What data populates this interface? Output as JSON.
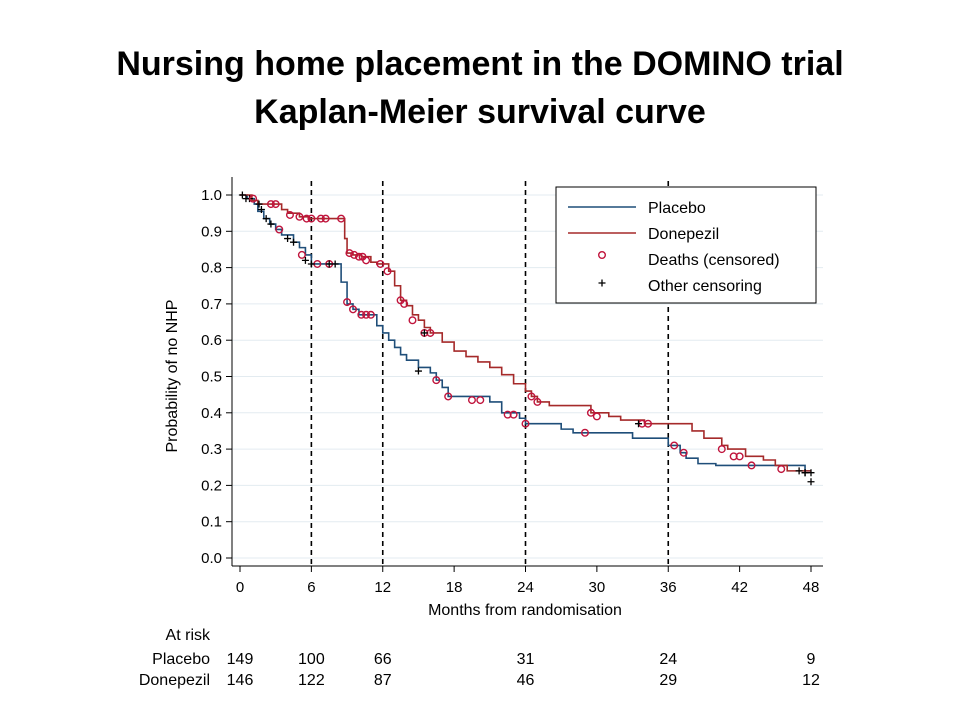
{
  "slide": {
    "title_line1": "Nursing home placement in the DOMINO trial",
    "title_line2": "Kaplan-Meier survival curve"
  },
  "chart_data": {
    "type": "line",
    "subtype": "step (Kaplan-Meier)",
    "xlabel": "Months from randomisation",
    "ylabel": "Probability of no NHP",
    "xlim": [
      0,
      48
    ],
    "ylim": [
      0,
      1
    ],
    "x_ticks": [
      0,
      6,
      12,
      18,
      24,
      30,
      36,
      42,
      48
    ],
    "y_ticks": [
      0.0,
      0.1,
      0.2,
      0.3,
      0.4,
      0.5,
      0.6,
      0.7,
      0.8,
      0.9,
      1.0
    ],
    "y_tick_labels": [
      "0.0",
      "0.1",
      "0.2",
      "0.3",
      "0.4",
      "0.5",
      "0.6",
      "0.7",
      "0.8",
      "0.9",
      "1.0"
    ],
    "grid": "horizontal",
    "reference_lines_x": [
      6,
      12,
      24,
      36
    ],
    "legend_position": "top-right",
    "legend": [
      {
        "label": "Placebo",
        "kind": "line",
        "color": "#1f4e79"
      },
      {
        "label": "Donepezil",
        "kind": "line",
        "color": "#a52a2a"
      },
      {
        "label": "Deaths (censored)",
        "kind": "circle",
        "color": "#c0143c"
      },
      {
        "label": "Other censoring",
        "kind": "plus",
        "color": "#000000"
      }
    ],
    "series": [
      {
        "name": "Placebo",
        "color": "#1f4e79",
        "steps": [
          [
            0,
            1.0
          ],
          [
            0.6,
            0.99
          ],
          [
            1.2,
            0.975
          ],
          [
            1.5,
            0.955
          ],
          [
            2.0,
            0.935
          ],
          [
            2.5,
            0.92
          ],
          [
            3.0,
            0.905
          ],
          [
            3.5,
            0.89
          ],
          [
            4.5,
            0.87
          ],
          [
            5.0,
            0.855
          ],
          [
            5.5,
            0.835
          ],
          [
            6.0,
            0.81
          ],
          [
            8.0,
            0.81
          ],
          [
            8.5,
            0.76
          ],
          [
            9.0,
            0.7
          ],
          [
            9.5,
            0.685
          ],
          [
            10.0,
            0.67
          ],
          [
            11.5,
            0.64
          ],
          [
            12.0,
            0.62
          ],
          [
            12.5,
            0.6
          ],
          [
            13.0,
            0.58
          ],
          [
            13.5,
            0.56
          ],
          [
            14.0,
            0.545
          ],
          [
            15.0,
            0.525
          ],
          [
            16.0,
            0.51
          ],
          [
            16.5,
            0.49
          ],
          [
            17.0,
            0.47
          ],
          [
            17.5,
            0.445
          ],
          [
            21.0,
            0.43
          ],
          [
            22.0,
            0.4
          ],
          [
            23.5,
            0.385
          ],
          [
            24.0,
            0.37
          ],
          [
            27.0,
            0.355
          ],
          [
            28.0,
            0.345
          ],
          [
            33.0,
            0.33
          ],
          [
            36.0,
            0.31
          ],
          [
            37.0,
            0.29
          ],
          [
            37.5,
            0.275
          ],
          [
            38.5,
            0.26
          ],
          [
            40.0,
            0.255
          ],
          [
            47.5,
            0.24
          ],
          [
            48.0,
            0.24
          ]
        ],
        "deaths": [
          [
            3.3,
            0.905
          ],
          [
            5.2,
            0.835
          ],
          [
            6.5,
            0.81
          ],
          [
            7.5,
            0.81
          ],
          [
            9.0,
            0.705
          ],
          [
            9.5,
            0.685
          ],
          [
            10.2,
            0.67
          ],
          [
            10.6,
            0.67
          ],
          [
            11.0,
            0.67
          ],
          [
            16.5,
            0.49
          ],
          [
            17.5,
            0.445
          ],
          [
            19.5,
            0.435
          ],
          [
            20.2,
            0.435
          ],
          [
            22.5,
            0.395
          ],
          [
            23.0,
            0.395
          ],
          [
            24.0,
            0.37
          ],
          [
            29.0,
            0.345
          ],
          [
            36.5,
            0.31
          ],
          [
            37.3,
            0.29
          ],
          [
            43.0,
            0.255
          ],
          [
            45.5,
            0.245
          ]
        ],
        "censored": [
          [
            0.2,
            1.0
          ],
          [
            0.5,
            0.99
          ],
          [
            0.8,
            0.99
          ],
          [
            1.6,
            0.975
          ],
          [
            1.8,
            0.96
          ],
          [
            2.2,
            0.935
          ],
          [
            2.6,
            0.92
          ],
          [
            4.0,
            0.88
          ],
          [
            4.5,
            0.87
          ],
          [
            5.5,
            0.82
          ],
          [
            6.0,
            0.81
          ],
          [
            7.5,
            0.81
          ],
          [
            8.0,
            0.81
          ],
          [
            15.0,
            0.515
          ],
          [
            47.0,
            0.24
          ],
          [
            47.5,
            0.235
          ],
          [
            48.0,
            0.235
          ]
        ]
      },
      {
        "name": "Donepezil",
        "color": "#a52a2a",
        "steps": [
          [
            0,
            1.0
          ],
          [
            1.0,
            0.985
          ],
          [
            1.5,
            0.975
          ],
          [
            3.5,
            0.96
          ],
          [
            4.0,
            0.95
          ],
          [
            5.0,
            0.94
          ],
          [
            5.8,
            0.935
          ],
          [
            8.5,
            0.935
          ],
          [
            8.8,
            0.88
          ],
          [
            9.0,
            0.84
          ],
          [
            9.5,
            0.835
          ],
          [
            10.2,
            0.83
          ],
          [
            11.0,
            0.815
          ],
          [
            11.5,
            0.81
          ],
          [
            12.0,
            0.81
          ],
          [
            12.5,
            0.79
          ],
          [
            13.0,
            0.75
          ],
          [
            13.5,
            0.71
          ],
          [
            14.0,
            0.695
          ],
          [
            14.5,
            0.67
          ],
          [
            15.0,
            0.655
          ],
          [
            15.5,
            0.635
          ],
          [
            16.0,
            0.62
          ],
          [
            17.0,
            0.595
          ],
          [
            18.0,
            0.57
          ],
          [
            19.0,
            0.555
          ],
          [
            20.0,
            0.54
          ],
          [
            21.0,
            0.525
          ],
          [
            22.0,
            0.505
          ],
          [
            23.0,
            0.48
          ],
          [
            24.0,
            0.46
          ],
          [
            24.5,
            0.445
          ],
          [
            25.0,
            0.43
          ],
          [
            26.0,
            0.42
          ],
          [
            29.5,
            0.4
          ],
          [
            31.0,
            0.39
          ],
          [
            32.0,
            0.38
          ],
          [
            34.0,
            0.37
          ],
          [
            38.0,
            0.35
          ],
          [
            39.0,
            0.33
          ],
          [
            40.5,
            0.31
          ],
          [
            41.0,
            0.3
          ],
          [
            42.5,
            0.28
          ],
          [
            44.0,
            0.27
          ],
          [
            45.0,
            0.255
          ],
          [
            46.0,
            0.24
          ],
          [
            48.0,
            0.24
          ]
        ],
        "deaths": [
          [
            1.1,
            0.99
          ],
          [
            2.6,
            0.975
          ],
          [
            3.0,
            0.975
          ],
          [
            4.2,
            0.945
          ],
          [
            5.0,
            0.94
          ],
          [
            5.6,
            0.935
          ],
          [
            6.0,
            0.935
          ],
          [
            6.8,
            0.935
          ],
          [
            7.2,
            0.935
          ],
          [
            8.5,
            0.935
          ],
          [
            9.2,
            0.84
          ],
          [
            9.6,
            0.835
          ],
          [
            10.0,
            0.83
          ],
          [
            10.3,
            0.83
          ],
          [
            10.6,
            0.82
          ],
          [
            11.8,
            0.81
          ],
          [
            12.4,
            0.79
          ],
          [
            13.5,
            0.71
          ],
          [
            13.8,
            0.7
          ],
          [
            14.5,
            0.655
          ],
          [
            15.5,
            0.62
          ],
          [
            16.0,
            0.62
          ],
          [
            24.5,
            0.445
          ],
          [
            25.0,
            0.43
          ],
          [
            29.5,
            0.4
          ],
          [
            30.0,
            0.39
          ],
          [
            33.8,
            0.37
          ],
          [
            34.3,
            0.37
          ],
          [
            40.5,
            0.3
          ],
          [
            41.5,
            0.28
          ],
          [
            42.0,
            0.28
          ]
        ],
        "censored": [
          [
            15.5,
            0.62
          ],
          [
            33.5,
            0.37
          ],
          [
            47.5,
            0.235
          ],
          [
            48.0,
            0.21
          ]
        ]
      }
    ],
    "at_risk": {
      "title": "At risk",
      "times": [
        0,
        6,
        12,
        24,
        36,
        48
      ],
      "rows": [
        {
          "label": "Placebo",
          "values": [
            "149",
            "100",
            "66",
            "31",
            "24",
            "9"
          ]
        },
        {
          "label": "Donepezil",
          "values": [
            "146",
            "122",
            "87",
            "46",
            "29",
            "12"
          ]
        }
      ]
    }
  }
}
